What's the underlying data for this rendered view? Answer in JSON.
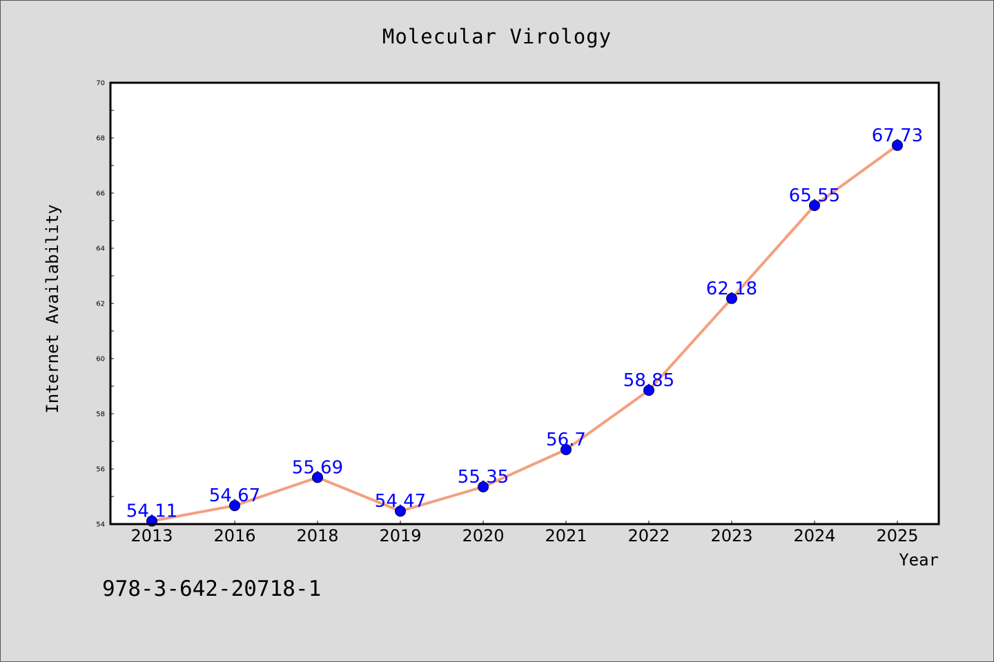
{
  "colors": {
    "background": "#dcdcdc",
    "plot_background": "#ffffff",
    "line": "#f4a07f",
    "marker": "#0000ff",
    "data_label": "#0000ff",
    "axis": "#000000"
  },
  "footnote": "978-3-642-20718-1",
  "chart_data": {
    "type": "line",
    "title": "Molecular Virology",
    "xlabel": "Year",
    "ylabel": "Internet Availability",
    "categories": [
      "2013",
      "2016",
      "2018",
      "2019",
      "2020",
      "2021",
      "2022",
      "2023",
      "2024",
      "2025"
    ],
    "series": [
      {
        "values": [
          54.11,
          54.67,
          55.69,
          54.47,
          55.35,
          56.7,
          58.85,
          62.18,
          65.55,
          67.73
        ],
        "labels": [
          "54.11",
          "54.67",
          "55.69",
          "54.47",
          "55.35",
          "56.7",
          "58.85",
          "62.18",
          "65.55",
          "67.73"
        ]
      }
    ],
    "ylim": [
      54,
      70
    ],
    "yticks": [
      "54",
      "56",
      "58",
      "60",
      "62",
      "64",
      "66",
      "68",
      "70"
    ],
    "grid": false,
    "legend": "none",
    "markers": true,
    "data_labels": true
  }
}
